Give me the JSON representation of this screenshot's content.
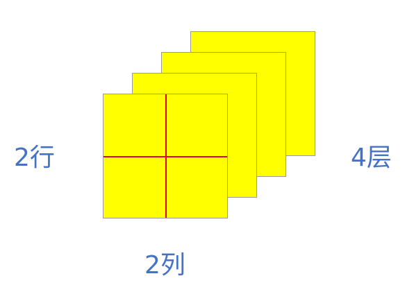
{
  "diagram": {
    "rows_label": "2行",
    "cols_label": "2列",
    "layers_label": "4层",
    "rows": 2,
    "cols": 2,
    "layers": 4
  },
  "colors": {
    "layer_fill": "#ffff00",
    "layer_border": "#9a9a9a",
    "grid_line": "#e0002a",
    "label_text": "#4472c4"
  }
}
